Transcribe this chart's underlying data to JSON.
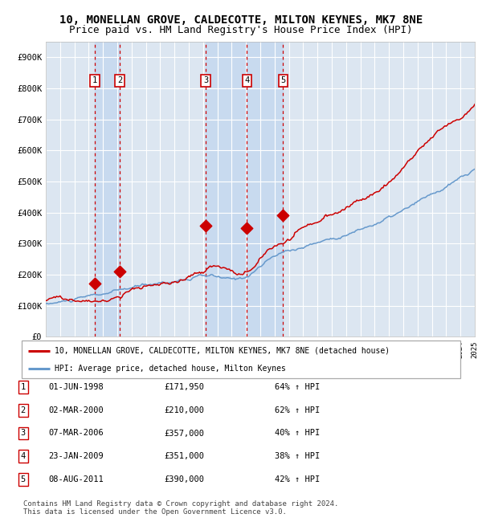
{
  "title": "10, MONELLAN GROVE, CALDECOTTE, MILTON KEYNES, MK7 8NE",
  "subtitle": "Price paid vs. HM Land Registry's House Price Index (HPI)",
  "title_fontsize": 10,
  "subtitle_fontsize": 9,
  "background_color": "#ffffff",
  "plot_bg_color": "#dce6f1",
  "grid_color": "#ffffff",
  "ylim": [
    0,
    950000
  ],
  "yticks": [
    0,
    100000,
    200000,
    300000,
    400000,
    500000,
    600000,
    700000,
    800000,
    900000
  ],
  "ytick_labels": [
    "£0",
    "£100K",
    "£200K",
    "£300K",
    "£400K",
    "£500K",
    "£600K",
    "£700K",
    "£800K",
    "£900K"
  ],
  "year_start": 1995,
  "year_end": 2025,
  "sale_dates_x": [
    1998.42,
    2000.17,
    2006.18,
    2009.06,
    2011.59
  ],
  "sale_prices_y": [
    171950,
    210000,
    357000,
    351000,
    390000
  ],
  "sale_labels": [
    "1",
    "2",
    "3",
    "4",
    "5"
  ],
  "sale_color": "#cc0000",
  "hpi_line_color": "#6699cc",
  "price_line_color": "#cc0000",
  "dashed_vline_color": "#cc0000",
  "shade_color": "#c5d8ef",
  "legend_line1": "10, MONELLAN GROVE, CALDECOTTE, MILTON KEYNES, MK7 8NE (detached house)",
  "legend_line2": "HPI: Average price, detached house, Milton Keynes",
  "table_entries": [
    {
      "num": "1",
      "date": "01-JUN-1998",
      "price": "£171,950",
      "hpi": "64% ↑ HPI"
    },
    {
      "num": "2",
      "date": "02-MAR-2000",
      "price": "£210,000",
      "hpi": "62% ↑ HPI"
    },
    {
      "num": "3",
      "date": "07-MAR-2006",
      "price": "£357,000",
      "hpi": "40% ↑ HPI"
    },
    {
      "num": "4",
      "date": "23-JAN-2009",
      "price": "£351,000",
      "hpi": "38% ↑ HPI"
    },
    {
      "num": "5",
      "date": "08-AUG-2011",
      "price": "£390,000",
      "hpi": "42% ↑ HPI"
    }
  ],
  "footer_text": "Contains HM Land Registry data © Crown copyright and database right 2024.\nThis data is licensed under the Open Government Licence v3.0.",
  "label_box_color": "#ffffff",
  "label_box_edge": "#cc0000"
}
